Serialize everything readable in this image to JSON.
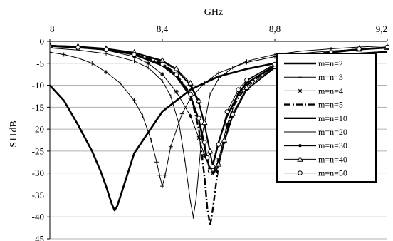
{
  "chart_data": {
    "type": "line",
    "xlabel": "GHz",
    "ylabel": "S11dB",
    "xlim": [
      8.0,
      9.2
    ],
    "ylim": [
      -45,
      0
    ],
    "x_ticks": [
      "8",
      "8,4",
      "8,8",
      "9,2"
    ],
    "x_tick_values": [
      8.0,
      8.4,
      8.8,
      9.2
    ],
    "y_ticks": [
      "0",
      "-5",
      "-10",
      "-15",
      "-20",
      "-25",
      "-30",
      "-35",
      "-40",
      "-45"
    ],
    "y_tick_values": [
      0,
      -5,
      -10,
      -15,
      -20,
      -25,
      -30,
      -35,
      -40,
      -45
    ],
    "x_axis_position": "top",
    "grid": "horizontal",
    "legend_position": "right",
    "series": [
      {
        "name": "m=n=2",
        "marker": "none",
        "stroke_width": 2.6,
        "x": [
          8.0,
          8.05,
          8.1,
          8.15,
          8.18,
          8.2,
          8.22,
          8.23,
          8.24,
          8.26,
          8.3,
          8.4,
          8.5,
          8.6,
          8.7,
          8.8,
          8.9,
          9.0,
          9.1,
          9.2
        ],
        "y": [
          -10.0,
          -13.5,
          -19.0,
          -25.0,
          -29.5,
          -33.0,
          -37.0,
          -38.5,
          -37.5,
          -33.5,
          -25.5,
          -16.0,
          -11.0,
          -8.0,
          -6.3,
          -5.0,
          -4.0,
          -3.3,
          -2.8,
          -2.4
        ]
      },
      {
        "name": "m=n=3",
        "marker": "plus",
        "stroke_width": 1.0,
        "x": [
          8.0,
          8.05,
          8.1,
          8.15,
          8.2,
          8.25,
          8.3,
          8.33,
          8.36,
          8.38,
          8.39,
          8.4,
          8.41,
          8.43,
          8.47,
          8.5,
          8.55,
          8.6,
          8.7,
          8.8,
          8.9,
          9.0,
          9.1,
          9.2
        ],
        "y": [
          -2.5,
          -3.0,
          -3.8,
          -5.0,
          -7.0,
          -9.5,
          -13.5,
          -17.0,
          -22.5,
          -27.5,
          -30.5,
          -33.0,
          -30.5,
          -24.0,
          -16.5,
          -13.0,
          -9.5,
          -7.2,
          -4.8,
          -3.5,
          -2.7,
          -2.2,
          -1.8,
          -1.5
        ]
      },
      {
        "name": "m=n=4",
        "marker": "star",
        "stroke_width": 1.0,
        "x": [
          8.0,
          8.1,
          8.2,
          8.3,
          8.35,
          8.4,
          8.45,
          8.5,
          8.53,
          8.55,
          8.57,
          8.58,
          8.6,
          8.63,
          8.67,
          8.7,
          8.8,
          8.9,
          9.0,
          9.1,
          9.2
        ],
        "y": [
          -1.2,
          -1.5,
          -2.0,
          -3.5,
          -5.0,
          -7.5,
          -11.5,
          -17.0,
          -22.0,
          -26.0,
          -29.0,
          -30.0,
          -27.0,
          -19.0,
          -12.0,
          -9.0,
          -5.2,
          -3.5,
          -2.5,
          -1.8,
          -1.4
        ]
      },
      {
        "name": "m=n=5",
        "marker": "none",
        "dashed": true,
        "stroke_width": 2.4,
        "x": [
          8.0,
          8.1,
          8.2,
          8.3,
          8.4,
          8.45,
          8.5,
          8.53,
          8.55,
          8.56,
          8.57,
          8.58,
          8.6,
          8.65,
          8.7,
          8.8,
          8.9,
          9.0,
          9.1,
          9.2
        ],
        "y": [
          -1.0,
          -1.3,
          -1.8,
          -2.8,
          -5.0,
          -7.5,
          -12.0,
          -20.0,
          -31.0,
          -38.0,
          -42.0,
          -38.0,
          -28.0,
          -15.0,
          -10.0,
          -5.5,
          -3.5,
          -2.4,
          -1.8,
          -1.4
        ]
      },
      {
        "name": "m=n=10",
        "marker": "none",
        "stroke_width": 2.4,
        "x": [
          8.0,
          8.1,
          8.2,
          8.3,
          8.4,
          8.45,
          8.5,
          8.53,
          8.55,
          8.56,
          8.57,
          8.58,
          8.6,
          8.63,
          8.67,
          8.7,
          8.8,
          8.9,
          9.0,
          9.1,
          9.2
        ],
        "y": [
          -1.0,
          -1.3,
          -1.9,
          -3.0,
          -5.5,
          -8.0,
          -12.5,
          -18.0,
          -24.0,
          -27.0,
          -29.5,
          -28.0,
          -23.0,
          -17.0,
          -12.0,
          -9.5,
          -5.5,
          -3.6,
          -2.5,
          -1.8,
          -1.4
        ]
      },
      {
        "name": "m=n=20",
        "marker": "tick",
        "stroke_width": 1.0,
        "x": [
          8.0,
          8.1,
          8.2,
          8.3,
          8.35,
          8.4,
          8.43,
          8.46,
          8.48,
          8.5,
          8.51,
          8.52,
          8.54,
          8.57,
          8.6,
          8.65,
          8.7,
          8.8,
          8.9,
          9.0,
          9.1,
          9.2
        ],
        "y": [
          -1.5,
          -2.0,
          -2.8,
          -4.5,
          -6.0,
          -9.0,
          -12.5,
          -19.0,
          -27.0,
          -36.5,
          -40.0,
          -36.0,
          -22.0,
          -12.0,
          -8.5,
          -6.0,
          -4.5,
          -3.0,
          -2.2,
          -1.7,
          -1.3,
          -1.0
        ]
      },
      {
        "name": "m=n=30",
        "marker": "dot",
        "stroke_width": 1.8,
        "x": [
          8.0,
          8.1,
          8.2,
          8.3,
          8.4,
          8.45,
          8.5,
          8.53,
          8.55,
          8.57,
          8.58,
          8.59,
          8.6,
          8.62,
          8.65,
          8.7,
          8.8,
          8.9,
          9.0,
          9.1,
          9.2
        ],
        "y": [
          -1.0,
          -1.2,
          -1.7,
          -2.6,
          -4.5,
          -6.5,
          -10.0,
          -14.0,
          -19.0,
          -25.5,
          -28.5,
          -29.5,
          -28.0,
          -23.0,
          -17.0,
          -11.0,
          -6.0,
          -3.8,
          -2.6,
          -1.9,
          -1.5
        ]
      },
      {
        "name": "m=n=40",
        "marker": "triangle",
        "stroke_width": 1.0,
        "x": [
          8.0,
          8.1,
          8.2,
          8.3,
          8.4,
          8.45,
          8.5,
          8.53,
          8.55,
          8.57,
          8.58,
          8.59,
          8.6,
          8.62,
          8.65,
          8.7,
          8.8,
          8.9,
          9.0,
          9.1,
          9.2
        ],
        "y": [
          -0.9,
          -1.1,
          -1.6,
          -2.5,
          -4.3,
          -6.2,
          -9.5,
          -13.5,
          -18.5,
          -25.0,
          -28.5,
          -30.0,
          -28.0,
          -22.5,
          -16.5,
          -10.5,
          -5.8,
          -3.7,
          -2.5,
          -1.8,
          -1.4
        ]
      },
      {
        "name": "m=n=50",
        "marker": "circle",
        "stroke_width": 1.0,
        "x": [
          8.0,
          8.1,
          8.2,
          8.3,
          8.4,
          8.45,
          8.5,
          8.53,
          8.55,
          8.56,
          8.57,
          8.58,
          8.6,
          8.63,
          8.67,
          8.7,
          8.8,
          8.9,
          9.0,
          9.1,
          9.2
        ],
        "y": [
          -1.1,
          -1.4,
          -1.9,
          -3.0,
          -5.2,
          -7.6,
          -12.0,
          -17.5,
          -23.0,
          -26.5,
          -29.5,
          -28.5,
          -23.5,
          -16.0,
          -11.0,
          -8.8,
          -5.2,
          -3.4,
          -2.4,
          -1.7,
          -1.3
        ]
      }
    ]
  }
}
